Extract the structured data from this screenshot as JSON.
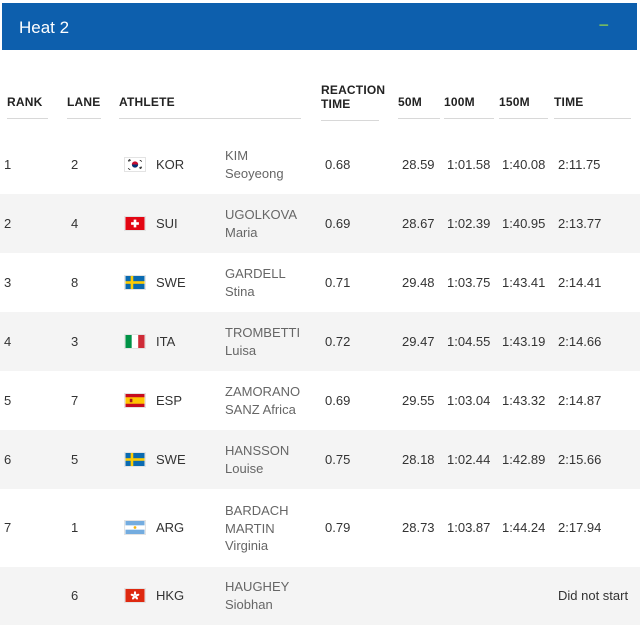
{
  "heat": {
    "title": "Heat 2",
    "collapse_icon": "−"
  },
  "columns": {
    "rank": "RANK",
    "lane": "LANE",
    "athlete": "ATHLETE",
    "reaction": "REACTION TIME",
    "m50": "50M",
    "m100": "100M",
    "m150": "150M",
    "time": "TIME"
  },
  "rows": [
    {
      "rank": "1",
      "lane": "2",
      "flag": "kor-flag-icon",
      "country": "KOR",
      "name_lines": [
        "KIM",
        "Seoyeong"
      ],
      "reaction": "0.68",
      "m50": "28.59",
      "m100": "1:01.58",
      "m150": "1:40.08",
      "time": "2:11.75"
    },
    {
      "rank": "2",
      "lane": "4",
      "flag": "sui-flag-icon",
      "country": "SUI",
      "name_lines": [
        "UGOLKOVA",
        "Maria"
      ],
      "reaction": "0.69",
      "m50": "28.67",
      "m100": "1:02.39",
      "m150": "1:40.95",
      "time": "2:13.77"
    },
    {
      "rank": "3",
      "lane": "8",
      "flag": "swe-flag-icon",
      "country": "SWE",
      "name_lines": [
        "GARDELL",
        "Stina"
      ],
      "reaction": "0.71",
      "m50": "29.48",
      "m100": "1:03.75",
      "m150": "1:43.41",
      "time": "2:14.41"
    },
    {
      "rank": "4",
      "lane": "3",
      "flag": "ita-flag-icon",
      "country": "ITA",
      "name_lines": [
        "TROMBETTI",
        "Luisa"
      ],
      "reaction": "0.72",
      "m50": "29.47",
      "m100": "1:04.55",
      "m150": "1:43.19",
      "time": "2:14.66"
    },
    {
      "rank": "5",
      "lane": "7",
      "flag": "esp-flag-icon",
      "country": "ESP",
      "name_lines": [
        "ZAMORANO",
        "SANZ Africa"
      ],
      "reaction": "0.69",
      "m50": "29.55",
      "m100": "1:03.04",
      "m150": "1:43.32",
      "time": "2:14.87"
    },
    {
      "rank": "6",
      "lane": "5",
      "flag": "swe-flag-icon",
      "country": "SWE",
      "name_lines": [
        "HANSSON",
        "Louise"
      ],
      "reaction": "0.75",
      "m50": "28.18",
      "m100": "1:02.44",
      "m150": "1:42.89",
      "time": "2:15.66"
    },
    {
      "rank": "7",
      "lane": "1",
      "flag": "arg-flag-icon",
      "country": "ARG",
      "name_lines": [
        "BARDACH",
        "MARTIN",
        "Virginia"
      ],
      "reaction": "0.79",
      "m50": "28.73",
      "m100": "1:03.87",
      "m150": "1:44.24",
      "time": "2:17.94"
    },
    {
      "rank": "",
      "lane": "6",
      "flag": "hkg-flag-icon",
      "country": "HKG",
      "name_lines": [
        "HAUGHEY",
        "Siobhan"
      ],
      "reaction": "",
      "m50": "",
      "m100": "",
      "m150": "",
      "time": "Did not start"
    }
  ]
}
